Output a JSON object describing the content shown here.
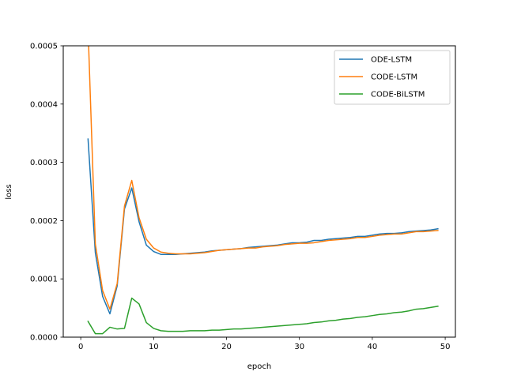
{
  "chart_data": {
    "type": "line",
    "title": "",
    "xlabel": "epoch",
    "ylabel": "loss",
    "xlim": [
      -2.4,
      51.4
    ],
    "ylim": [
      0,
      0.0005
    ],
    "x_ticks": [
      0,
      10,
      20,
      30,
      40,
      50
    ],
    "x_tick_labels": [
      "0",
      "10",
      "20",
      "30",
      "40",
      "50"
    ],
    "y_ticks": [
      0,
      0.0001,
      0.0002,
      0.0003,
      0.0004,
      0.0005
    ],
    "y_tick_labels": [
      "0.0000",
      "0.0001",
      "0.0002",
      "0.0003",
      "0.0004",
      "0.0005"
    ],
    "grid": false,
    "legend_position": "top-right",
    "x": [
      1,
      2,
      3,
      4,
      5,
      6,
      7,
      8,
      9,
      10,
      11,
      12,
      13,
      14,
      15,
      16,
      17,
      18,
      19,
      20,
      21,
      22,
      23,
      24,
      25,
      26,
      27,
      28,
      29,
      30,
      31,
      32,
      33,
      34,
      35,
      36,
      37,
      38,
      39,
      40,
      41,
      42,
      43,
      44,
      45,
      46,
      47,
      48,
      49
    ],
    "series": [
      {
        "name": "ODE-LSTM",
        "color": "#1f77b4",
        "values": [
          0.00034,
          0.000145,
          7e-05,
          4e-05,
          8.8e-05,
          0.00022,
          0.000256,
          0.000198,
          0.000158,
          0.000147,
          0.000142,
          0.000142,
          0.000142,
          0.000143,
          0.000144,
          0.000145,
          0.000146,
          0.000148,
          0.000149,
          0.00015,
          0.000151,
          0.000152,
          0.000154,
          0.000155,
          0.000156,
          0.000157,
          0.000158,
          0.00016,
          0.000162,
          0.000162,
          0.000163,
          0.000166,
          0.000166,
          0.000168,
          0.000169,
          0.00017,
          0.000171,
          0.000173,
          0.000173,
          0.000175,
          0.000177,
          0.000178,
          0.000178,
          0.000179,
          0.000181,
          0.000182,
          0.000183,
          0.000184,
          0.000186
        ]
      },
      {
        "name": "CODE-LSTM",
        "color": "#ff7f0e",
        "values": [
          0.00053,
          0.00016,
          8e-05,
          4.8e-05,
          9.2e-05,
          0.000225,
          0.000269,
          0.000205,
          0.000168,
          0.000153,
          0.000146,
          0.000144,
          0.000143,
          0.000143,
          0.000143,
          0.000144,
          0.000145,
          0.000147,
          0.000149,
          0.00015,
          0.000151,
          0.000152,
          0.000153,
          0.000153,
          0.000155,
          0.000156,
          0.000157,
          0.000159,
          0.00016,
          0.000161,
          0.000161,
          0.000162,
          0.000164,
          0.000166,
          0.000167,
          0.000168,
          0.000169,
          0.000171,
          0.000171,
          0.000173,
          0.000175,
          0.000176,
          0.000177,
          0.000177,
          0.000179,
          0.000181,
          0.000181,
          0.000182,
          0.000183
        ]
      },
      {
        "name": "CODE-BiLSTM",
        "color": "#2ca02c",
        "values": [
          2.7e-05,
          6e-06,
          6e-06,
          1.7e-05,
          1.4e-05,
          1.5e-05,
          6.7e-05,
          5.7e-05,
          2.5e-05,
          1.5e-05,
          1.1e-05,
          1e-05,
          1e-05,
          1e-05,
          1.1e-05,
          1.1e-05,
          1.1e-05,
          1.2e-05,
          1.2e-05,
          1.3e-05,
          1.4e-05,
          1.4e-05,
          1.5e-05,
          1.6e-05,
          1.7e-05,
          1.8e-05,
          1.9e-05,
          2e-05,
          2.1e-05,
          2.2e-05,
          2.3e-05,
          2.5e-05,
          2.6e-05,
          2.8e-05,
          2.9e-05,
          3.1e-05,
          3.2e-05,
          3.4e-05,
          3.5e-05,
          3.7e-05,
          3.9e-05,
          4e-05,
          4.2e-05,
          4.3e-05,
          4.5e-05,
          4.8e-05,
          4.9e-05,
          5.1e-05,
          5.3e-05
        ]
      }
    ]
  }
}
